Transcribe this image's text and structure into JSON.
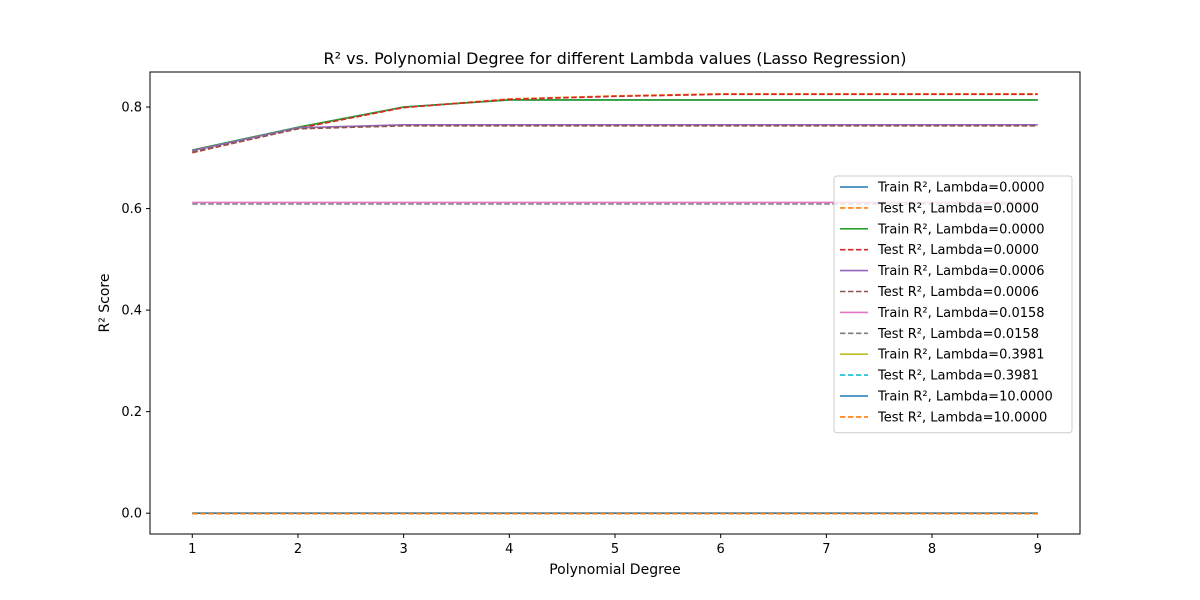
{
  "chart_data": {
    "type": "line",
    "title": "R² vs. Polynomial Degree for different Lambda values (Lasso Regression)",
    "xlabel": "Polynomial Degree",
    "ylabel": "R² Score",
    "x": [
      1,
      2,
      3,
      4,
      5,
      6,
      7,
      8,
      9
    ],
    "xlim": [
      0.6,
      9.4
    ],
    "ylim": [
      -0.041,
      0.869
    ],
    "xticks": [
      1,
      2,
      3,
      4,
      5,
      6,
      7,
      8,
      9
    ],
    "yticks": [
      0.0,
      0.2,
      0.4,
      0.6,
      0.8
    ],
    "ytick_labels": [
      "0.0",
      "0.2",
      "0.4",
      "0.6",
      "0.8"
    ],
    "grid": false,
    "legend_position": "center-right",
    "series": [
      {
        "name": "Train R², Lambda=0.0000",
        "color": "#1f77b4",
        "style": "solid",
        "values": [
          0.715,
          0.76,
          0.8,
          0.814,
          0.814,
          0.814,
          0.814,
          0.814,
          0.814
        ]
      },
      {
        "name": "Test R², Lambda=0.0000",
        "color": "#ff7f0e",
        "style": "dashed",
        "values": [
          0.712,
          0.758,
          0.799,
          0.816,
          0.822,
          0.826,
          0.826,
          0.826,
          0.826
        ]
      },
      {
        "name": "Train R², Lambda=0.0000",
        "color": "#2ca02c",
        "style": "solid",
        "values": [
          0.715,
          0.76,
          0.8,
          0.814,
          0.814,
          0.814,
          0.814,
          0.814,
          0.814
        ]
      },
      {
        "name": "Test R², Lambda=0.0000",
        "color": "#d62728",
        "style": "dashed",
        "values": [
          0.71,
          0.758,
          0.799,
          0.815,
          0.821,
          0.825,
          0.825,
          0.825,
          0.825
        ]
      },
      {
        "name": "Train R², Lambda=0.0006",
        "color": "#9467bd",
        "style": "solid",
        "values": [
          0.714,
          0.759,
          0.765,
          0.765,
          0.765,
          0.765,
          0.765,
          0.765,
          0.765
        ]
      },
      {
        "name": "Test R², Lambda=0.0006",
        "color": "#8c564b",
        "style": "dashed",
        "values": [
          0.711,
          0.757,
          0.763,
          0.763,
          0.763,
          0.763,
          0.763,
          0.763,
          0.763
        ]
      },
      {
        "name": "Train R², Lambda=0.0158",
        "color": "#e377c2",
        "style": "solid",
        "values": [
          0.612,
          0.612,
          0.612,
          0.612,
          0.612,
          0.612,
          0.612,
          0.612,
          0.612
        ]
      },
      {
        "name": "Test R², Lambda=0.0158",
        "color": "#7f7f7f",
        "style": "dashed",
        "values": [
          0.609,
          0.609,
          0.609,
          0.609,
          0.609,
          0.609,
          0.609,
          0.609,
          0.609
        ]
      },
      {
        "name": "Train R², Lambda=0.3981",
        "color": "#bcbd22",
        "style": "solid",
        "values": [
          0.0,
          0.0,
          0.0,
          0.0,
          0.0,
          0.0,
          0.0,
          0.0,
          0.0
        ]
      },
      {
        "name": "Test R², Lambda=0.3981",
        "color": "#17becf",
        "style": "dashed",
        "values": [
          -0.001,
          -0.001,
          -0.001,
          -0.001,
          -0.001,
          -0.001,
          -0.001,
          -0.001,
          -0.001
        ]
      },
      {
        "name": "Train R², Lambda=10.0000",
        "color": "#1f77b4",
        "style": "solid",
        "values": [
          0.0,
          0.0,
          0.0,
          0.0,
          0.0,
          0.0,
          0.0,
          0.0,
          0.0
        ]
      },
      {
        "name": "Test R², Lambda=10.0000",
        "color": "#ff7f0e",
        "style": "dashed",
        "values": [
          -0.001,
          -0.001,
          -0.001,
          -0.001,
          -0.001,
          -0.001,
          -0.001,
          -0.001,
          -0.001
        ]
      }
    ]
  }
}
